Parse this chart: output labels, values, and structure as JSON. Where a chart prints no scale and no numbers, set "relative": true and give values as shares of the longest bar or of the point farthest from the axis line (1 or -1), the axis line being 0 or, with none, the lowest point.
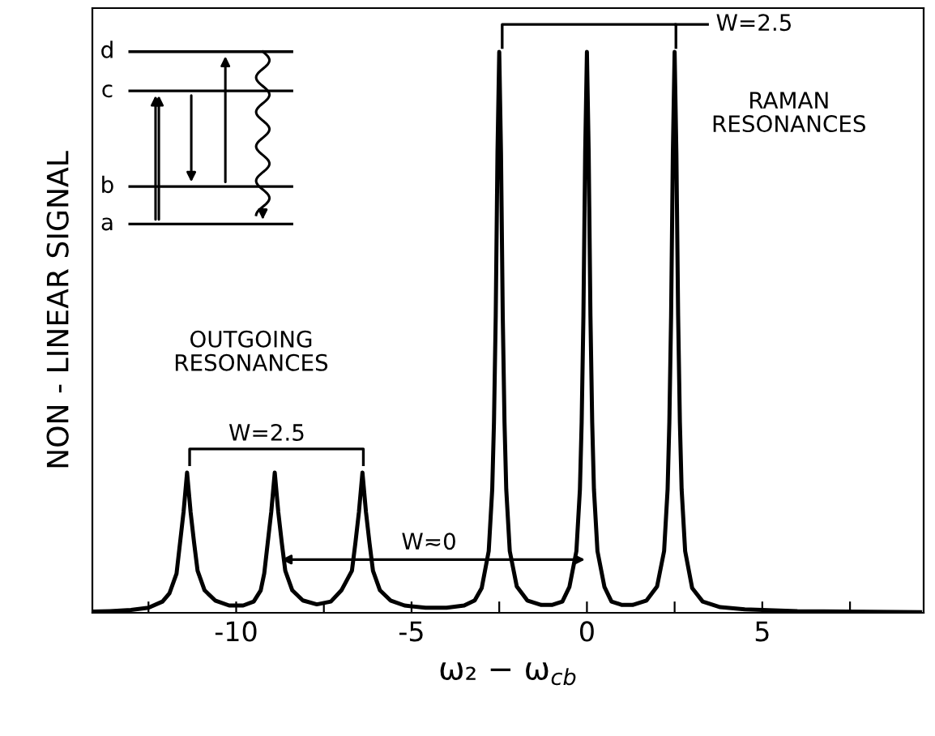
{
  "chart_data": {
    "type": "line",
    "relative": true,
    "xlabel": "ω₂ − ω$_{cb}$",
    "ylabel": "NON - LINEAR SIGNAL",
    "xlim": [
      -14.1,
      9.6
    ],
    "xticks": [
      {
        "value": -12.5,
        "label": null
      },
      -10,
      {
        "value": -7.5,
        "label": null
      },
      -5,
      {
        "value": -2.5,
        "label": null
      },
      0,
      {
        "value": 2.5,
        "label": null
      },
      5,
      {
        "value": 7.5,
        "label": null
      }
    ],
    "grid": false,
    "legend": false,
    "marker": "none",
    "line_style": "solid",
    "series": [
      {
        "color": "#000000",
        "x": [
          -14.1,
          -13.6,
          -13,
          -12.5,
          -12.1,
          -11.9,
          -11.7,
          -11.6,
          -11.5,
          -11.4,
          -11.3,
          -11.2,
          -11.1,
          -10.9,
          -10.6,
          -10.2,
          -9.8,
          -9.5,
          -9.3,
          -9.2,
          -9.1,
          -9.0,
          -8.9,
          -8.8,
          -8.7,
          -8.6,
          -8.4,
          -8.1,
          -7.7,
          -7.3,
          -7.0,
          -6.7,
          -6.6,
          -6.5,
          -6.4,
          -6.3,
          -6.2,
          -6.1,
          -5.9,
          -5.6,
          -5.2,
          -4.6,
          -4.0,
          -3.5,
          -3.2,
          -3.0,
          -2.8,
          -2.7,
          -2.65,
          -2.6,
          -2.55,
          -2.5,
          -2.45,
          -2.4,
          -2.35,
          -2.3,
          -2.2,
          -2.0,
          -1.7,
          -1.3,
          -1.0,
          -0.7,
          -0.5,
          -0.3,
          -0.2,
          -0.15,
          -0.1,
          -0.05,
          0,
          0.05,
          0.1,
          0.15,
          0.2,
          0.3,
          0.5,
          0.7,
          1.0,
          1.3,
          1.7,
          2.0,
          2.2,
          2.3,
          2.35,
          2.4,
          2.45,
          2.5,
          2.55,
          2.6,
          2.65,
          2.7,
          2.8,
          3.0,
          3.3,
          3.8,
          4.5,
          6,
          9.5
        ],
        "values": [
          0.002,
          0.003,
          0.005,
          0.009,
          0.02,
          0.035,
          0.07,
          0.125,
          0.18,
          0.25,
          0.18,
          0.125,
          0.075,
          0.04,
          0.022,
          0.013,
          0.013,
          0.02,
          0.04,
          0.07,
          0.125,
          0.18,
          0.25,
          0.18,
          0.125,
          0.075,
          0.04,
          0.022,
          0.015,
          0.02,
          0.04,
          0.075,
          0.125,
          0.18,
          0.25,
          0.18,
          0.125,
          0.075,
          0.04,
          0.022,
          0.013,
          0.009,
          0.009,
          0.013,
          0.022,
          0.044,
          0.11,
          0.22,
          0.34,
          0.53,
          0.82,
          1,
          0.82,
          0.53,
          0.34,
          0.22,
          0.11,
          0.047,
          0.022,
          0.014,
          0.014,
          0.02,
          0.046,
          0.11,
          0.22,
          0.34,
          0.53,
          0.82,
          1,
          0.82,
          0.53,
          0.34,
          0.22,
          0.11,
          0.046,
          0.02,
          0.014,
          0.014,
          0.022,
          0.047,
          0.11,
          0.22,
          0.34,
          0.53,
          0.82,
          1,
          0.82,
          0.53,
          0.34,
          0.22,
          0.11,
          0.044,
          0.02,
          0.01,
          0.006,
          0.003,
          0.001
        ]
      }
    ],
    "annotations": [
      "W=2.5",
      "RAMAN\nRESONANCES",
      "OUTGOING\nRESONANCES",
      "W=2.5",
      "W≂0",
      "a",
      "b",
      "c",
      "d"
    ]
  }
}
